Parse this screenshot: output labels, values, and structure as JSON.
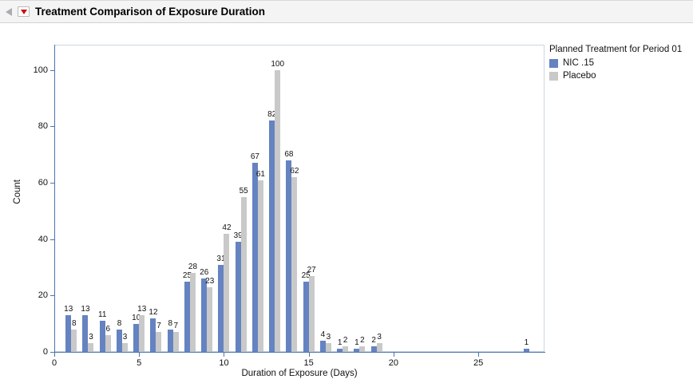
{
  "window": {
    "title": "Treatment Comparison of Exposure Duration"
  },
  "chart_data": {
    "type": "bar",
    "title": "Treatment Comparison of Exposure Duration",
    "xlabel": "Duration of Exposure (Days)",
    "ylabel": "Count",
    "legend_title": "Planned Treatment for Period 01",
    "legend_position": "right",
    "grid": false,
    "bar_labels": true,
    "x": [
      1,
      2,
      3,
      4,
      5,
      6,
      7,
      8,
      9,
      10,
      11,
      12,
      13,
      14,
      15,
      16,
      17,
      18,
      19,
      28
    ],
    "series": [
      {
        "name": "NIC .15",
        "color": "#6583c1",
        "values": [
          13,
          13,
          11,
          8,
          10,
          12,
          8,
          25,
          26,
          31,
          39,
          67,
          82,
          68,
          25,
          4,
          1,
          1,
          2,
          1
        ]
      },
      {
        "name": "Placebo",
        "color": "#c9c9c9",
        "values": [
          8,
          3,
          6,
          3,
          13,
          7,
          7,
          28,
          23,
          42,
          55,
          61,
          100,
          62,
          27,
          3,
          2,
          2,
          3,
          null
        ]
      }
    ],
    "xlim": [
      0,
      28.9
    ],
    "ylim": [
      0,
      109
    ],
    "x_ticks": [
      0,
      5,
      10,
      15,
      20,
      25
    ],
    "y_ticks": [
      0,
      20,
      40,
      60,
      80,
      100
    ],
    "axis_color": "#4b74ae"
  }
}
